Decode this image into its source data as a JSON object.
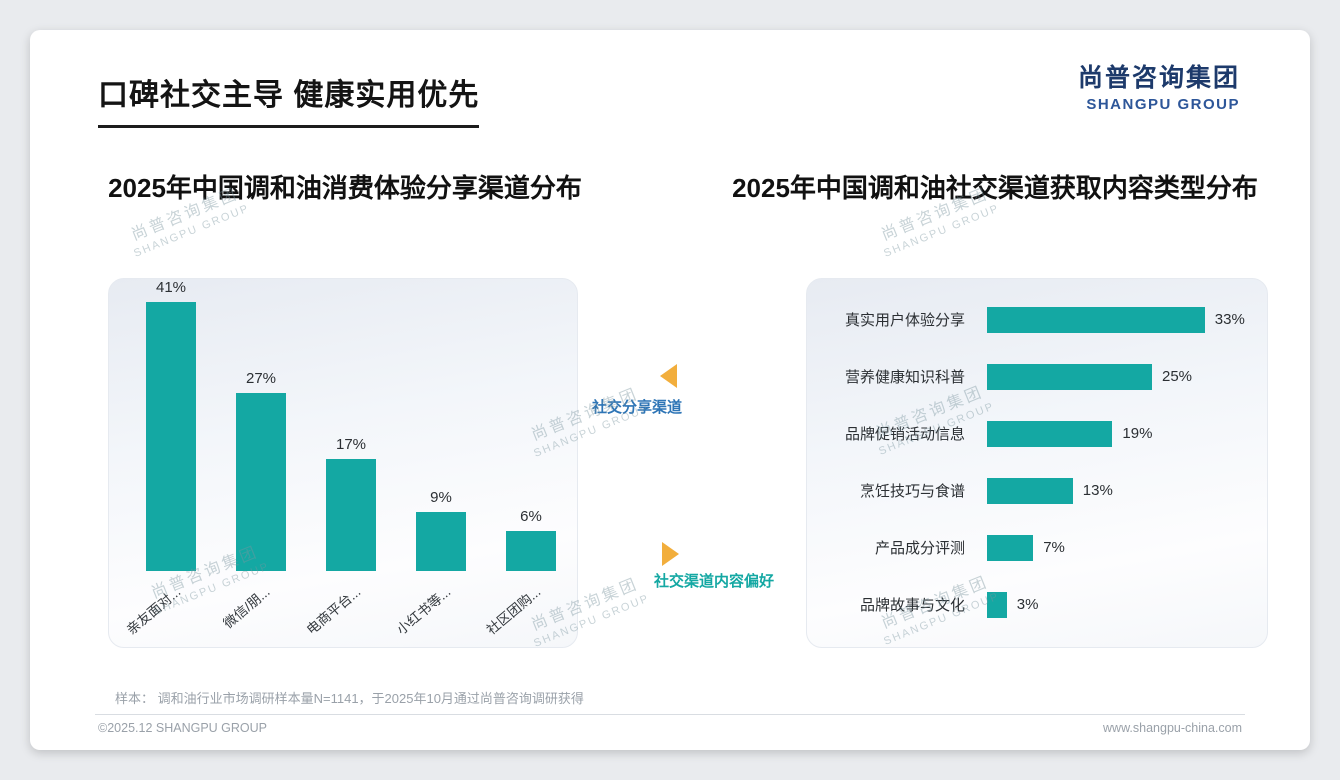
{
  "page": {
    "title": "口碑社交主导 健康实用优先",
    "logo": {
      "cn": "尚普咨询集团",
      "en": "SHANGPU GROUP"
    },
    "sample_note": "样本： 调和油行业市场调研样本量N=1141，于2025年10月通过尚普咨询调研获得",
    "footer": {
      "left": "©2025.12 SHANGPU GROUP",
      "right": "www.shangpu-china.com"
    }
  },
  "annotations": {
    "share_channel": "社交分享渠道",
    "content_preference": "社交渠道内容偏好"
  },
  "watermark": {
    "cn": "尚普咨询集团",
    "en": "SHANGPU GROUP"
  },
  "colors": {
    "teal": "#14a8a3",
    "blue": "#2e75b6",
    "orange": "#f2ae3c",
    "logo_blue": "#1d3a6b",
    "logo_blue2": "#2d5699"
  },
  "chart_data": [
    {
      "type": "bar",
      "orientation": "vertical",
      "title": "2025年中国调和油消费体验分享渠道分布",
      "categories": [
        "亲友面对...",
        "微信/朋...",
        "电商平台...",
        "小红书等...",
        "社区团购..."
      ],
      "values": [
        41,
        27,
        17,
        9,
        6
      ],
      "unit": "%",
      "bar_color": "#14a8a3",
      "ylim": [
        0,
        45
      ],
      "grid": false,
      "legend": "none"
    },
    {
      "type": "bar",
      "orientation": "horizontal",
      "title": "2025年中国调和油社交渠道获取内容类型分布",
      "categories": [
        "真实用户体验分享",
        "营养健康知识科普",
        "品牌促销活动信息",
        "烹饪技巧与食谱",
        "产品成分评测",
        "品牌故事与文化"
      ],
      "values": [
        33,
        25,
        19,
        13,
        7,
        3
      ],
      "unit": "%",
      "bar_color": "#14a8a3",
      "xlim": [
        0,
        35
      ],
      "grid": false,
      "legend": "none"
    }
  ]
}
